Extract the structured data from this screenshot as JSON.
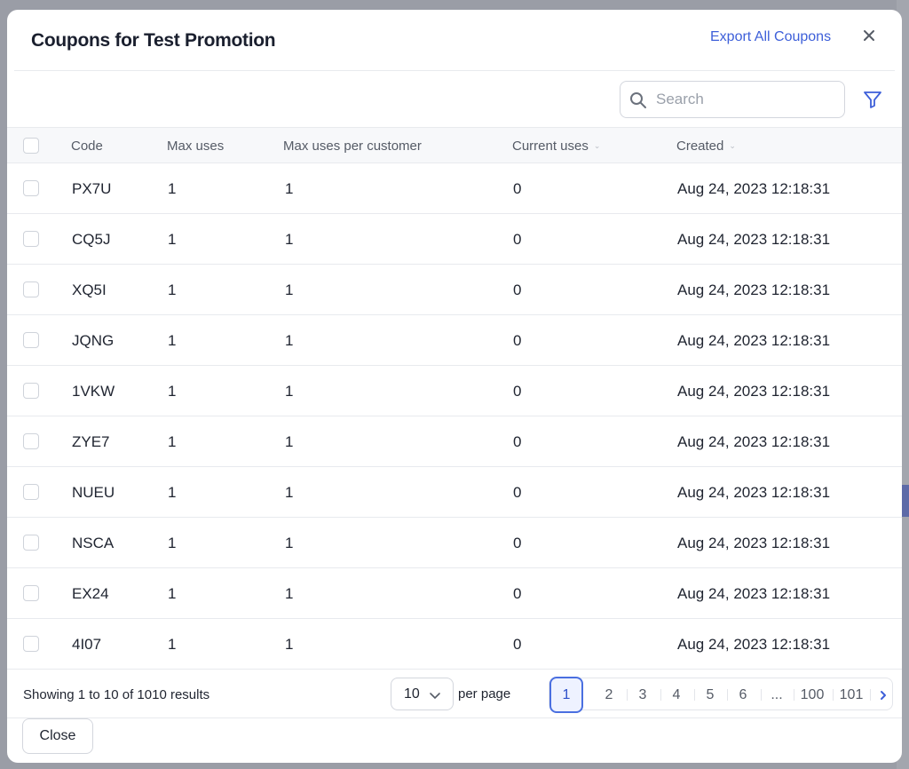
{
  "modal": {
    "title": "Coupons for Test Promotion",
    "export_label": "Export All Coupons",
    "close_label": "Close"
  },
  "search": {
    "placeholder": "Search",
    "value": ""
  },
  "columns": [
    "Code",
    "Max uses",
    "Max uses per customer",
    "Current uses",
    "Created"
  ],
  "sortable_columns": [
    "Current uses",
    "Created"
  ],
  "rows": [
    {
      "code": "PX7U",
      "max_uses": "1",
      "max_uses_per_customer": "1",
      "current_uses": "0",
      "created": "Aug 24, 2023 12:18:31"
    },
    {
      "code": "CQ5J",
      "max_uses": "1",
      "max_uses_per_customer": "1",
      "current_uses": "0",
      "created": "Aug 24, 2023 12:18:31"
    },
    {
      "code": "XQ5I",
      "max_uses": "1",
      "max_uses_per_customer": "1",
      "current_uses": "0",
      "created": "Aug 24, 2023 12:18:31"
    },
    {
      "code": "JQNG",
      "max_uses": "1",
      "max_uses_per_customer": "1",
      "current_uses": "0",
      "created": "Aug 24, 2023 12:18:31"
    },
    {
      "code": "1VKW",
      "max_uses": "1",
      "max_uses_per_customer": "1",
      "current_uses": "0",
      "created": "Aug 24, 2023 12:18:31"
    },
    {
      "code": "ZYE7",
      "max_uses": "1",
      "max_uses_per_customer": "1",
      "current_uses": "0",
      "created": "Aug 24, 2023 12:18:31"
    },
    {
      "code": "NUEU",
      "max_uses": "1",
      "max_uses_per_customer": "1",
      "current_uses": "0",
      "created": "Aug 24, 2023 12:18:31"
    },
    {
      "code": "NSCA",
      "max_uses": "1",
      "max_uses_per_customer": "1",
      "current_uses": "0",
      "created": "Aug 24, 2023 12:18:31"
    },
    {
      "code": "EX24",
      "max_uses": "1",
      "max_uses_per_customer": "1",
      "current_uses": "0",
      "created": "Aug 24, 2023 12:18:31"
    },
    {
      "code": "4I07",
      "max_uses": "1",
      "max_uses_per_customer": "1",
      "current_uses": "0",
      "created": "Aug 24, 2023 12:18:31"
    }
  ],
  "footer": {
    "showing": "Showing 1 to 10 of 1010 results",
    "per_page_value": "10",
    "per_page_label": "per page"
  },
  "pagination": {
    "pages": [
      "1",
      "2",
      "3",
      "4",
      "5",
      "6",
      "...",
      "100",
      "101"
    ],
    "active": "1"
  },
  "colors": {
    "accent": "#3d5fd9",
    "overlay": "#8a8d96"
  },
  "icons": {
    "search": "search-icon",
    "filter": "filter-icon",
    "close": "close-icon",
    "next": "chevron-right-icon",
    "dropdown": "chevron-down-icon"
  }
}
